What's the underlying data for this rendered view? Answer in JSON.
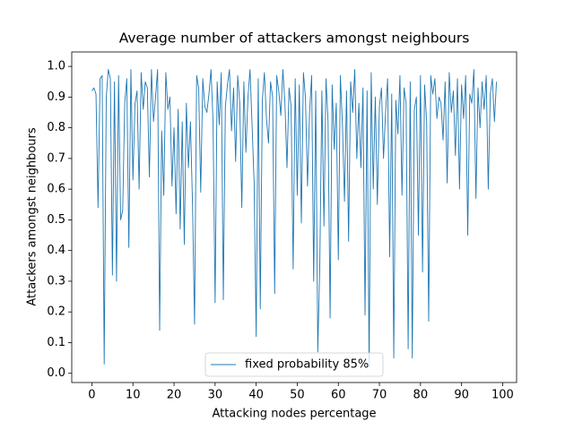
{
  "chart_data": {
    "type": "line",
    "title": "Average number of attackers amongst neighbours",
    "xlabel": "Attacking nodes percentage",
    "ylabel": "Attackers amongst neighbours",
    "x": [
      0,
      0.5,
      1,
      1.5,
      2,
      2.5,
      3,
      3.5,
      4,
      4.5,
      5,
      5.5,
      6,
      6.5,
      7,
      7.5,
      8,
      8.5,
      9,
      9.5,
      10,
      10.5,
      11,
      11.5,
      12,
      12.5,
      13,
      13.5,
      14,
      14.5,
      15,
      15.5,
      16,
      16.5,
      17,
      17.5,
      18,
      18.5,
      19,
      19.5,
      20,
      20.5,
      21,
      21.5,
      22,
      22.5,
      23,
      23.5,
      24,
      24.5,
      25,
      25.5,
      26,
      26.5,
      27,
      27.5,
      28,
      28.5,
      29,
      29.5,
      30,
      30.5,
      31,
      31.5,
      32,
      32.5,
      33,
      33.5,
      34,
      34.5,
      35,
      35.5,
      36,
      36.5,
      37,
      37.5,
      38,
      38.5,
      39,
      39.5,
      40,
      40.5,
      41,
      41.5,
      42,
      42.5,
      43,
      43.5,
      44,
      44.5,
      45,
      45.5,
      46,
      46.5,
      47,
      47.5,
      48,
      48.5,
      49,
      49.5,
      50,
      50.5,
      51,
      51.5,
      52,
      52.5,
      53,
      53.5,
      54,
      54.5,
      55,
      55.5,
      56,
      56.5,
      57,
      57.5,
      58,
      58.5,
      59,
      59.5,
      60,
      60.5,
      61,
      61.5,
      62,
      62.5,
      63,
      63.5,
      64,
      64.5,
      65,
      65.5,
      66,
      66.5,
      67,
      67.5,
      68,
      68.5,
      69,
      69.5,
      70,
      70.5,
      71,
      71.5,
      72,
      72.5,
      73,
      73.5,
      74,
      74.5,
      75,
      75.5,
      76,
      76.5,
      77,
      77.5,
      78,
      78.5,
      79,
      79.5,
      80,
      80.5,
      81,
      81.5,
      82,
      82.5,
      83,
      83.5,
      84,
      84.5,
      85,
      85.5,
      86,
      86.5,
      87,
      87.5,
      88,
      88.5,
      89,
      89.5,
      90,
      90.5,
      91,
      91.5,
      92,
      92.5,
      93,
      93.5,
      94,
      94.5,
      95,
      95.5,
      96,
      96.5,
      97,
      97.5,
      98,
      98.5
    ],
    "series": [
      {
        "name": "fixed probability 85%",
        "color": "#1f77b4",
        "values": [
          0.92,
          0.93,
          0.91,
          0.54,
          0.96,
          0.97,
          0.03,
          0.9,
          0.99,
          0.96,
          0.32,
          0.95,
          0.3,
          0.97,
          0.5,
          0.53,
          0.88,
          0.96,
          0.41,
          0.99,
          0.63,
          0.88,
          0.92,
          0.6,
          0.98,
          0.86,
          0.95,
          0.93,
          0.64,
          0.99,
          0.82,
          0.9,
          0.99,
          0.14,
          0.79,
          0.58,
          0.98,
          0.86,
          0.9,
          0.61,
          0.8,
          0.52,
          0.86,
          0.47,
          0.82,
          0.42,
          0.88,
          0.67,
          0.82,
          0.55,
          0.16,
          0.97,
          0.93,
          0.59,
          0.96,
          0.87,
          0.85,
          0.91,
          0.99,
          0.82,
          0.23,
          0.95,
          0.81,
          0.98,
          0.24,
          0.87,
          0.94,
          0.99,
          0.79,
          0.93,
          0.69,
          0.97,
          0.88,
          0.54,
          0.95,
          0.72,
          0.9,
          0.99,
          0.81,
          0.62,
          0.12,
          0.96,
          0.21,
          0.89,
          0.98,
          0.83,
          0.75,
          0.95,
          0.9,
          0.26,
          0.97,
          0.92,
          0.84,
          0.99,
          0.88,
          0.67,
          0.93,
          0.87,
          0.34,
          0.96,
          0.58,
          0.94,
          0.49,
          0.98,
          0.9,
          0.61,
          0.85,
          0.97,
          0.3,
          0.92,
          0.07,
          0.36,
          0.92,
          0.48,
          0.96,
          0.82,
          0.18,
          0.94,
          0.73,
          0.88,
          0.37,
          0.97,
          0.81,
          0.56,
          0.92,
          0.43,
          0.95,
          0.85,
          0.99,
          0.7,
          0.88,
          0.67,
          0.93,
          0.19,
          0.92,
          0.02,
          0.98,
          0.6,
          0.9,
          0.55,
          0.87,
          0.93,
          0.7,
          0.85,
          0.96,
          0.38,
          0.91,
          0.05,
          0.89,
          0.78,
          0.97,
          0.58,
          0.93,
          0.88,
          0.08,
          0.95,
          0.05,
          0.86,
          0.9,
          0.45,
          0.97,
          0.33,
          0.94,
          0.82,
          0.17,
          0.97,
          0.91,
          0.96,
          0.83,
          0.9,
          0.88,
          0.76,
          0.95,
          0.62,
          0.98,
          0.85,
          0.92,
          0.71,
          0.96,
          0.6,
          0.94,
          0.83,
          0.97,
          0.45,
          0.91,
          0.88,
          0.99,
          0.57,
          0.93,
          0.8,
          0.95,
          0.86,
          0.97,
          0.6,
          0.91,
          0.96,
          0.82,
          0.95
        ]
      }
    ],
    "xlim": [
      -4.9,
      103.4
    ],
    "ylim": [
      -0.03,
      1.047
    ],
    "xticks": [
      0,
      10,
      20,
      30,
      40,
      50,
      60,
      70,
      80,
      90,
      100
    ],
    "yticks": [
      {
        "value": 0,
        "label": "0.0"
      },
      {
        "value": 0.1,
        "label": "0.1"
      },
      {
        "value": 0.2,
        "label": "0.2"
      },
      {
        "value": 0.3,
        "label": "0.3"
      },
      {
        "value": 0.4,
        "label": "0.4"
      },
      {
        "value": 0.5,
        "label": "0.5"
      },
      {
        "value": 0.6,
        "label": "0.6"
      },
      {
        "value": 0.7,
        "label": "0.7"
      },
      {
        "value": 0.8,
        "label": "0.8"
      },
      {
        "value": 0.9,
        "label": "0.9"
      },
      {
        "value": 1,
        "label": "1.0"
      }
    ],
    "legend": "lower center"
  }
}
